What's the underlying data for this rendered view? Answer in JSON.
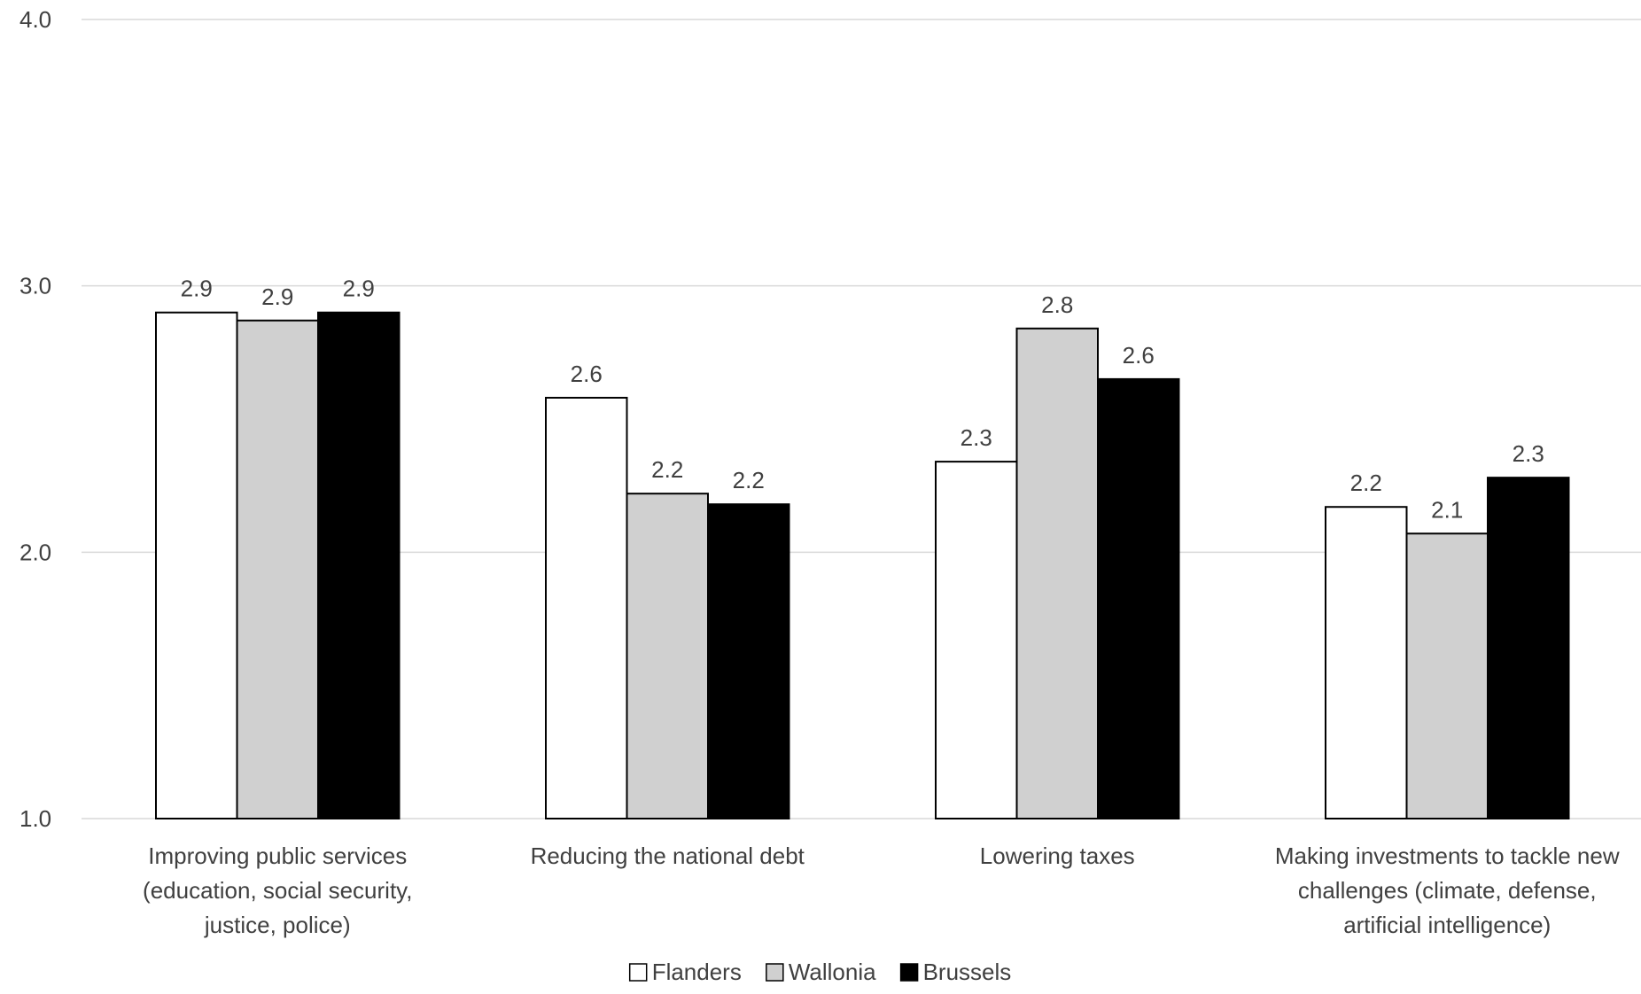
{
  "chart_data": {
    "type": "bar",
    "title": "",
    "xlabel": "",
    "ylabel": "",
    "ylim": [
      1.0,
      4.0
    ],
    "yticks": [
      "1.0",
      "2.0",
      "3.0",
      "4.0"
    ],
    "grid": true,
    "legend_position": "bottom",
    "categories": [
      [
        "Improving public services",
        "(education, social security,",
        "justice, police)"
      ],
      [
        "Reducing the national debt"
      ],
      [
        "Lowering taxes"
      ],
      [
        "Making investments to tackle new",
        "challenges (climate, defense,",
        "artificial intelligence)"
      ]
    ],
    "series": [
      {
        "name": "Flanders",
        "values": [
          2.9,
          2.58,
          2.34,
          2.17
        ],
        "labels": [
          "2.9",
          "2.6",
          "2.3",
          "2.2"
        ],
        "color": "#ffffff"
      },
      {
        "name": "Wallonia",
        "values": [
          2.87,
          2.22,
          2.84,
          2.07
        ],
        "labels": [
          "2.9",
          "2.2",
          "2.8",
          "2.1"
        ],
        "color": "#d0d0d0"
      },
      {
        "name": "Brussels",
        "values": [
          2.9,
          2.18,
          2.65,
          2.28
        ],
        "labels": [
          "2.9",
          "2.2",
          "2.6",
          "2.3"
        ],
        "color": "#000000"
      }
    ],
    "colors": {
      "gridline": "#d9d9d9",
      "text": "#404040",
      "bar_outline": "#000000"
    }
  }
}
